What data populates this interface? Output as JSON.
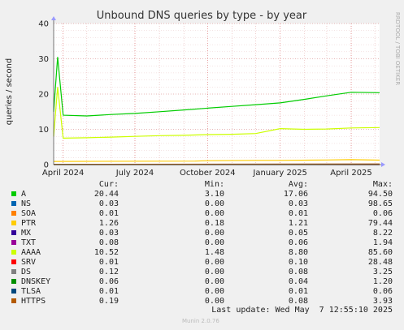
{
  "chart_data": {
    "type": "line",
    "title": "Unbound DNS queries by type - by year",
    "ylabel": "queries / second",
    "side_label": "RRDTOOL / TOBI OETIKER",
    "ylim": [
      0,
      40
    ],
    "yticks": [
      0,
      10,
      20,
      30,
      40
    ],
    "xlim": [
      "2024-03-20",
      "2025-05-07"
    ],
    "xticks": [
      {
        "label": "April 2024",
        "date": "2024-04-01"
      },
      {
        "label": "July 2024",
        "date": "2024-07-01"
      },
      {
        "label": "October 2024",
        "date": "2024-10-01"
      },
      {
        "label": "January 2025",
        "date": "2025-01-01"
      },
      {
        "label": "April 2025",
        "date": "2025-04-01"
      }
    ],
    "series": [
      {
        "name": "A",
        "color": "#00cc00",
        "x": [
          "2024-03-20",
          "2024-03-25",
          "2024-04-01",
          "2024-05-01",
          "2024-06-01",
          "2024-07-01",
          "2024-08-01",
          "2024-09-01",
          "2024-10-01",
          "2024-11-01",
          "2024-12-01",
          "2025-01-01",
          "2025-02-01",
          "2025-03-01",
          "2025-04-01",
          "2025-05-07"
        ],
        "y": [
          15,
          30.5,
          14,
          13.8,
          14.2,
          14.5,
          15,
          15.5,
          16,
          16.5,
          17,
          17.5,
          18.5,
          19.5,
          20.5,
          20.4
        ]
      },
      {
        "name": "NS",
        "color": "#0066b3",
        "x": [
          "2024-03-20",
          "2025-05-07"
        ],
        "y": [
          0.03,
          0.03
        ]
      },
      {
        "name": "SOA",
        "color": "#ff8000",
        "x": [
          "2024-03-20",
          "2025-05-07"
        ],
        "y": [
          0.01,
          0.01
        ]
      },
      {
        "name": "PTR",
        "color": "#ffcc00",
        "x": [
          "2024-03-20",
          "2024-09-15",
          "2024-10-01",
          "2024-12-01",
          "2025-01-01",
          "2025-03-01",
          "2025-04-01",
          "2025-05-07"
        ],
        "y": [
          0.9,
          1.0,
          1.1,
          1.2,
          1.2,
          1.3,
          1.4,
          1.26
        ]
      },
      {
        "name": "MX",
        "color": "#330099",
        "x": [
          "2024-03-20",
          "2025-05-07"
        ],
        "y": [
          0.03,
          0.03
        ]
      },
      {
        "name": "TXT",
        "color": "#990099",
        "x": [
          "2024-03-20",
          "2025-05-07"
        ],
        "y": [
          0.06,
          0.08
        ]
      },
      {
        "name": "AAAA",
        "color": "#ccff00",
        "x": [
          "2024-03-20",
          "2024-03-25",
          "2024-04-01",
          "2024-05-01",
          "2024-06-01",
          "2024-07-01",
          "2024-08-01",
          "2024-09-01",
          "2024-10-01",
          "2024-11-01",
          "2024-12-01",
          "2025-01-01",
          "2025-02-01",
          "2025-03-01",
          "2025-04-01",
          "2025-05-07"
        ],
        "y": [
          8,
          22,
          7.5,
          7.6,
          7.8,
          8,
          8.2,
          8.3,
          8.5,
          8.6,
          8.8,
          10.2,
          10,
          10.1,
          10.4,
          10.5
        ]
      },
      {
        "name": "SRV",
        "color": "#ff0000",
        "x": [
          "2024-03-20",
          "2025-05-07"
        ],
        "y": [
          0.1,
          0.01
        ]
      },
      {
        "name": "DS",
        "color": "#808080",
        "x": [
          "2024-03-20",
          "2025-05-07"
        ],
        "y": [
          0.1,
          0.12
        ]
      },
      {
        "name": "DNSKEY",
        "color": "#008f00",
        "x": [
          "2024-03-20",
          "2025-05-07"
        ],
        "y": [
          0.04,
          0.06
        ]
      },
      {
        "name": "TLSA",
        "color": "#00487d",
        "x": [
          "2024-03-20",
          "2025-05-07"
        ],
        "y": [
          0.01,
          0.01
        ]
      },
      {
        "name": "HTTPS",
        "color": "#b35a00",
        "x": [
          "2024-03-20",
          "2025-05-07"
        ],
        "y": [
          0.08,
          0.19
        ]
      }
    ],
    "grid": true
  },
  "legend": {
    "headers": [
      "Cur:",
      "Min:",
      "Avg:",
      "Max:"
    ],
    "rows": [
      {
        "name": "A",
        "color": "#00cc00",
        "cur": "20.44",
        "min": "3.10",
        "avg": "17.06",
        "max": "94.50"
      },
      {
        "name": "NS",
        "color": "#0066b3",
        "cur": "0.03",
        "min": "0.00",
        "avg": "0.03",
        "max": "98.65"
      },
      {
        "name": "SOA",
        "color": "#ff8000",
        "cur": "0.01",
        "min": "0.00",
        "avg": "0.01",
        "max": "0.06"
      },
      {
        "name": "PTR",
        "color": "#ffcc00",
        "cur": "1.26",
        "min": "0.18",
        "avg": "1.21",
        "max": "79.44"
      },
      {
        "name": "MX",
        "color": "#330099",
        "cur": "0.03",
        "min": "0.00",
        "avg": "0.05",
        "max": "8.22"
      },
      {
        "name": "TXT",
        "color": "#990099",
        "cur": "0.08",
        "min": "0.00",
        "avg": "0.06",
        "max": "1.94"
      },
      {
        "name": "AAAA",
        "color": "#ccff00",
        "cur": "10.52",
        "min": "1.48",
        "avg": "8.80",
        "max": "85.60"
      },
      {
        "name": "SRV",
        "color": "#ff0000",
        "cur": "0.01",
        "min": "0.00",
        "avg": "0.10",
        "max": "28.48"
      },
      {
        "name": "DS",
        "color": "#808080",
        "cur": "0.12",
        "min": "0.00",
        "avg": "0.08",
        "max": "3.25"
      },
      {
        "name": "DNSKEY",
        "color": "#008f00",
        "cur": "0.06",
        "min": "0.00",
        "avg": "0.04",
        "max": "1.20"
      },
      {
        "name": "TLSA",
        "color": "#00487d",
        "cur": "0.01",
        "min": "0.00",
        "avg": "0.01",
        "max": "0.06"
      },
      {
        "name": "HTTPS",
        "color": "#b35a00",
        "cur": "0.19",
        "min": "0.00",
        "avg": "0.08",
        "max": "3.93"
      }
    ]
  },
  "footer": {
    "last_update": "Last update: Wed May  7 12:55:10 2025",
    "munin_version": "Munin 2.0.76"
  }
}
